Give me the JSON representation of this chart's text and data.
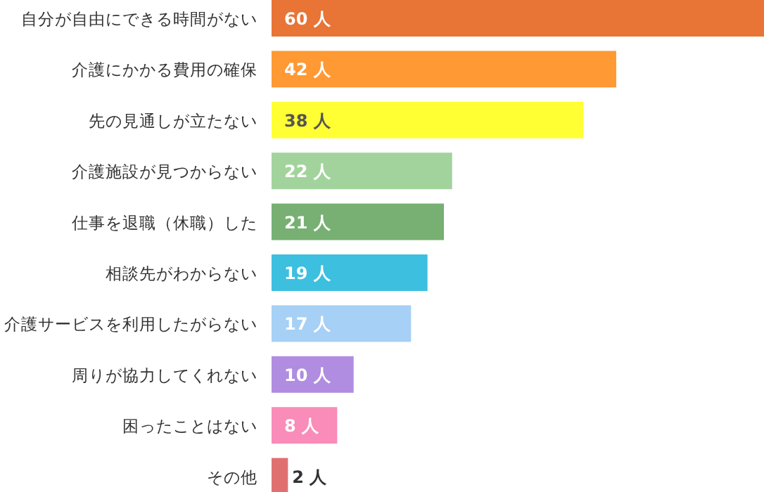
{
  "chart_data": {
    "type": "bar",
    "orientation": "horizontal",
    "categories": [
      "自分が自由にできる時間がない",
      "介護にかかる費用の確保",
      "先の見通しが立たない",
      "介護施設が見つからない",
      "仕事を退職（休職）した",
      "相談先がわからない",
      "介護サービスを利用したがらない",
      "周りが協力してくれない",
      "困ったことはない",
      "その他"
    ],
    "values": [
      60,
      42,
      38,
      22,
      21,
      19,
      17,
      10,
      8,
      2
    ],
    "value_labels": [
      "60 人",
      "42 人",
      "38 人",
      "22 人",
      "21 人",
      "19 人",
      "17 人",
      "10 人",
      "8 人",
      "2 人"
    ],
    "colors": [
      "#e87436",
      "#ff9933",
      "#ffff33",
      "#a3d39c",
      "#77b072",
      "#3dbfdf",
      "#a6d0f5",
      "#b08de0",
      "#f98cb9",
      "#e07070"
    ]
  }
}
